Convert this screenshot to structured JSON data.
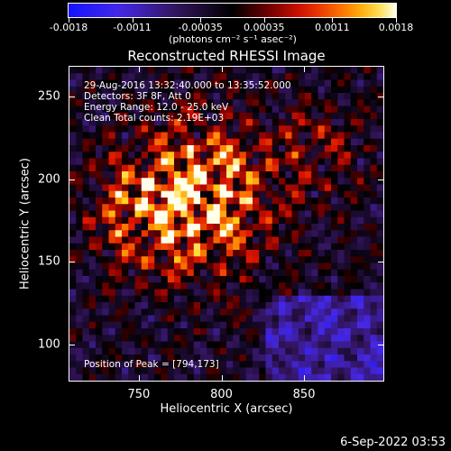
{
  "header": {
    "colorbar_unit": "(photons cm⁻² s⁻¹ asec⁻²)",
    "colorbar_ticks": [
      "-0.0018",
      "-0.0011",
      "-0.00035",
      "0.00035",
      "0.0011",
      "0.0018"
    ]
  },
  "info": {
    "time_range": "29-Aug-2016 13:32:40.000 to 13:35:52.000",
    "detectors": "Detectors: 3F 8F, Att 0",
    "energy": "Energy Range: 12.0 - 25.0 keV",
    "clean": "Clean     Total counts: 2.19E+03",
    "peak": "Position of Peak = [794,173]"
  },
  "footer": {
    "date": "6-Sep-2022 03:53"
  },
  "colors": {
    "background": "#000000",
    "frame": "#ffffff"
  },
  "chart_data": {
    "type": "heatmap",
    "title": "Reconstructed RHESSI Image",
    "xlabel": "Heliocentric X (arcsec)",
    "ylabel": "Heliocentric Y (arcsec)",
    "xlim": [
      708,
      898
    ],
    "ylim": [
      78,
      268
    ],
    "x_ticks": [
      750,
      800,
      850
    ],
    "y_ticks": [
      100,
      150,
      200,
      250
    ],
    "colorbar_range": [
      -0.0018,
      0.0018
    ],
    "colorbar_ticks": [
      -0.0018,
      -0.0011,
      -0.00035,
      0.00035,
      0.0011,
      0.0018
    ],
    "peak_position": [
      794,
      173
    ]
  }
}
